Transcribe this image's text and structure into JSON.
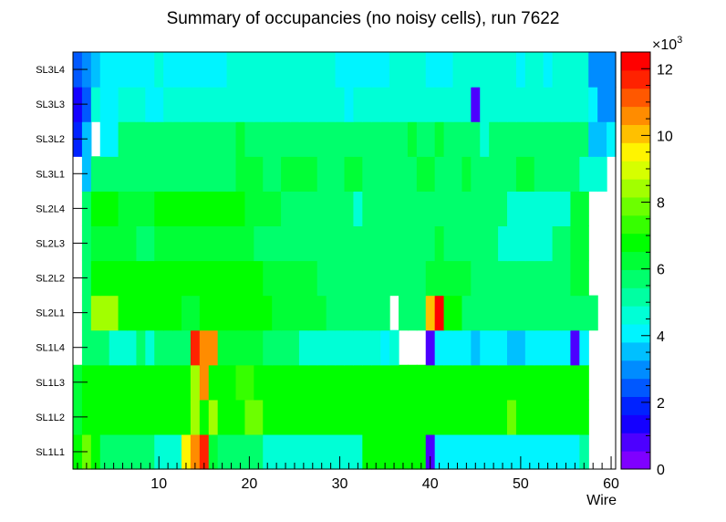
{
  "chart_data": {
    "type": "heatmap",
    "title": "Summary of occupancies (no noisy cells), run 7622",
    "xlabel": "Wire",
    "ylabel": "",
    "xlim": [
      0.5,
      60.5
    ],
    "x_ticks": [
      "10",
      "20",
      "30",
      "40",
      "50",
      "60"
    ],
    "x_tick_values": [
      10,
      20,
      30,
      40,
      50,
      60
    ],
    "y_categories": [
      "SL1L1",
      "SL1L2",
      "SL1L3",
      "SL1L4",
      "SL2L1",
      "SL2L2",
      "SL2L3",
      "SL2L4",
      "SL3L1",
      "SL3L2",
      "SL3L3",
      "SL3L4"
    ],
    "color_scale": {
      "zlim": [
        0,
        12500
      ],
      "ticks": [
        "0",
        "2",
        "4",
        "6",
        "8",
        "10",
        "12"
      ],
      "tick_values": [
        0,
        2000,
        4000,
        6000,
        8000,
        10000,
        12000
      ],
      "multiplier_label": "×10",
      "multiplier_exponent": "3",
      "palette": [
        "#7f00ff",
        "#4c00ff",
        "#1400ff",
        "#0022ff",
        "#0058ff",
        "#008cff",
        "#00c0ff",
        "#00f4ff",
        "#00ffd6",
        "#00ffa2",
        "#00ff6c",
        "#00ff36",
        "#00ff00",
        "#36ff00",
        "#6cff00",
        "#a2ff00",
        "#d6ff00",
        "#fff400",
        "#ffc000",
        "#ff8c00",
        "#ff5800",
        "#ff2200",
        "#ff0000"
      ]
    },
    "rows": {
      "SL1L1": [
        7000,
        7800,
        7000,
        5600,
        5600,
        5600,
        5600,
        5600,
        5600,
        4800,
        4800,
        4800,
        9500,
        10500,
        11500,
        6400,
        5600,
        5600,
        5600,
        5600,
        5600,
        4800,
        4800,
        4800,
        4800,
        4800,
        4800,
        4800,
        4800,
        4800,
        4800,
        4800,
        6800,
        6800,
        6800,
        6800,
        6800,
        6800,
        6800,
        800,
        4200,
        4200,
        4200,
        4200,
        4200,
        4200,
        4200,
        4200,
        4200,
        4200,
        4200,
        4200,
        4200,
        4200,
        4200,
        4200,
        5400,
        null,
        null,
        null
      ],
      "SL1L2": [
        6400,
        7000,
        7000,
        7000,
        7000,
        7000,
        7000,
        7000,
        7000,
        7000,
        7000,
        7000,
        7000,
        8500,
        7000,
        8500,
        7000,
        7000,
        7000,
        8000,
        8000,
        7000,
        7000,
        7000,
        7000,
        7000,
        7000,
        7000,
        7000,
        7000,
        7000,
        7000,
        7000,
        7000,
        7000,
        7000,
        7000,
        7000,
        7000,
        7000,
        7000,
        7000,
        7000,
        7000,
        7000,
        7000,
        7000,
        7000,
        8000,
        7000,
        7000,
        7000,
        7000,
        7000,
        7000,
        7000,
        7000,
        null,
        null,
        null
      ],
      "SL1L3": [
        6400,
        7000,
        7000,
        7000,
        7000,
        7000,
        7000,
        7000,
        7000,
        7000,
        7000,
        7000,
        7000,
        8500,
        10500,
        7000,
        7000,
        7000,
        7600,
        7600,
        7000,
        7000,
        7000,
        7000,
        7000,
        7000,
        7000,
        7000,
        7000,
        7000,
        7000,
        7000,
        7000,
        7000,
        7000,
        7000,
        7000,
        7000,
        7000,
        7000,
        7000,
        7000,
        7000,
        7000,
        7000,
        7000,
        7000,
        7000,
        7000,
        7000,
        7000,
        7000,
        7000,
        7000,
        7000,
        7000,
        7000,
        null,
        null,
        null
      ],
      "SL1L4": [
        null,
        5600,
        5600,
        5600,
        4800,
        4800,
        4800,
        5600,
        4800,
        5600,
        5600,
        5600,
        5600,
        11800,
        10500,
        10500,
        6400,
        6400,
        6400,
        6400,
        6400,
        5600,
        5600,
        5600,
        5600,
        4800,
        4800,
        4800,
        4800,
        4800,
        4800,
        4800,
        4800,
        4800,
        4200,
        4800,
        null,
        null,
        null,
        800,
        4200,
        4200,
        4200,
        4200,
        3500,
        4200,
        4200,
        4200,
        3500,
        3500,
        4200,
        4200,
        4200,
        4200,
        4200,
        800,
        4200,
        null,
        null,
        null
      ],
      "SL2L1": [
        null,
        5600,
        8200,
        8200,
        8200,
        7000,
        7000,
        7000,
        7000,
        7000,
        7000,
        7000,
        6400,
        6400,
        7000,
        7000,
        7000,
        7000,
        7000,
        7000,
        7000,
        7000,
        6400,
        6400,
        6400,
        6400,
        6400,
        6400,
        5600,
        5600,
        5600,
        5600,
        5600,
        5600,
        5600,
        null,
        5600,
        5600,
        5600,
        10200,
        12400,
        7000,
        7000,
        5600,
        5600,
        5600,
        5600,
        5600,
        5600,
        5600,
        5600,
        5600,
        5600,
        5600,
        5600,
        5600,
        5600,
        5600,
        null,
        null
      ],
      "SL2L2": [
        null,
        5600,
        7000,
        7000,
        7000,
        7000,
        7000,
        7000,
        7000,
        7000,
        7000,
        7000,
        7000,
        7000,
        7000,
        7000,
        7000,
        7000,
        7000,
        7000,
        7000,
        6400,
        6400,
        6400,
        6400,
        6400,
        6400,
        5600,
        5600,
        5600,
        5600,
        5600,
        5600,
        5600,
        5600,
        5600,
        5600,
        5600,
        5600,
        6400,
        6400,
        6400,
        6400,
        6400,
        5600,
        5600,
        5600,
        5600,
        5600,
        5600,
        5600,
        5600,
        5600,
        5600,
        5600,
        6400,
        6400,
        null,
        null,
        null
      ],
      "SL2L3": [
        null,
        5600,
        6400,
        6400,
        6400,
        6400,
        6400,
        5600,
        5600,
        6400,
        6400,
        6400,
        6400,
        6400,
        6400,
        6400,
        6400,
        6400,
        6400,
        6400,
        5600,
        5600,
        5600,
        5600,
        5600,
        5600,
        5600,
        5600,
        5600,
        5600,
        5600,
        5600,
        5600,
        5600,
        5600,
        5600,
        5600,
        5600,
        5600,
        5600,
        6400,
        5600,
        5600,
        5600,
        5600,
        5600,
        5600,
        4800,
        4800,
        4800,
        4800,
        4800,
        4800,
        5600,
        5600,
        6400,
        6400,
        null,
        null,
        null
      ],
      "SL2L4": [
        null,
        5600,
        7000,
        7000,
        7000,
        6400,
        6400,
        6400,
        6400,
        7000,
        7000,
        7000,
        7000,
        7000,
        7000,
        7000,
        7000,
        7000,
        7000,
        6400,
        6400,
        6400,
        6400,
        5600,
        5600,
        5600,
        5600,
        5600,
        5600,
        5600,
        5600,
        4800,
        5600,
        5600,
        5600,
        5600,
        5600,
        5600,
        5600,
        5600,
        5600,
        5600,
        5600,
        5600,
        5600,
        5600,
        5600,
        5600,
        4800,
        4800,
        4800,
        4800,
        4800,
        4800,
        4800,
        6400,
        6400,
        null,
        null,
        null
      ],
      "SL3L1": [
        null,
        3500,
        5600,
        5600,
        5600,
        5600,
        5600,
        5600,
        5600,
        5600,
        5600,
        5600,
        5600,
        5600,
        5600,
        5600,
        5600,
        5600,
        6400,
        6400,
        6400,
        5600,
        5600,
        6400,
        6400,
        6400,
        6400,
        5600,
        5600,
        5600,
        6400,
        6400,
        5600,
        5600,
        5600,
        5600,
        5600,
        5600,
        6400,
        6400,
        5600,
        5600,
        5600,
        6400,
        5600,
        5600,
        5600,
        5600,
        5600,
        6400,
        6400,
        5600,
        5600,
        5600,
        5600,
        5600,
        4800,
        4800,
        4800,
        null
      ],
      "SL3L2": [
        1800,
        3500,
        null,
        4200,
        4200,
        5600,
        5600,
        5600,
        5600,
        5600,
        5600,
        5600,
        5600,
        5600,
        5600,
        5600,
        5600,
        5600,
        6400,
        5600,
        5600,
        5600,
        5600,
        5600,
        5600,
        5600,
        5600,
        5600,
        5600,
        5600,
        5600,
        5600,
        5600,
        5600,
        5600,
        5600,
        5600,
        6400,
        5600,
        5600,
        6400,
        5600,
        5600,
        5600,
        5600,
        4800,
        5600,
        5600,
        5600,
        5600,
        5600,
        5600,
        5600,
        5600,
        5600,
        5600,
        5600,
        3500,
        3500,
        4200
      ],
      "SL3L3": [
        1500,
        2600,
        4800,
        4200,
        4200,
        4800,
        4800,
        4800,
        4200,
        4200,
        4800,
        4800,
        4800,
        4800,
        4800,
        4800,
        4800,
        4800,
        4800,
        4800,
        4800,
        4800,
        4800,
        4800,
        4800,
        4800,
        4800,
        4800,
        4800,
        4800,
        4200,
        4800,
        4800,
        4800,
        4800,
        4800,
        4800,
        4800,
        4800,
        4800,
        4800,
        4800,
        4800,
        4800,
        1000,
        4800,
        4800,
        4800,
        4800,
        4800,
        4800,
        4800,
        4800,
        4800,
        4800,
        4800,
        4800,
        4200,
        3000,
        3000
      ],
      "SL3L4": [
        2400,
        3000,
        3500,
        4200,
        4200,
        4200,
        4200,
        4200,
        4200,
        4800,
        4200,
        4200,
        4200,
        4200,
        4200,
        4200,
        4200,
        4800,
        4800,
        4800,
        4800,
        4800,
        4800,
        4800,
        4800,
        4800,
        4800,
        4800,
        4800,
        4200,
        4200,
        4200,
        4200,
        4200,
        4200,
        4800,
        4800,
        4800,
        4800,
        4200,
        4200,
        4200,
        4800,
        4800,
        4800,
        4800,
        4800,
        4800,
        4800,
        4200,
        4800,
        4800,
        4200,
        4800,
        4800,
        4800,
        4800,
        3000,
        3000,
        3000
      ]
    }
  }
}
